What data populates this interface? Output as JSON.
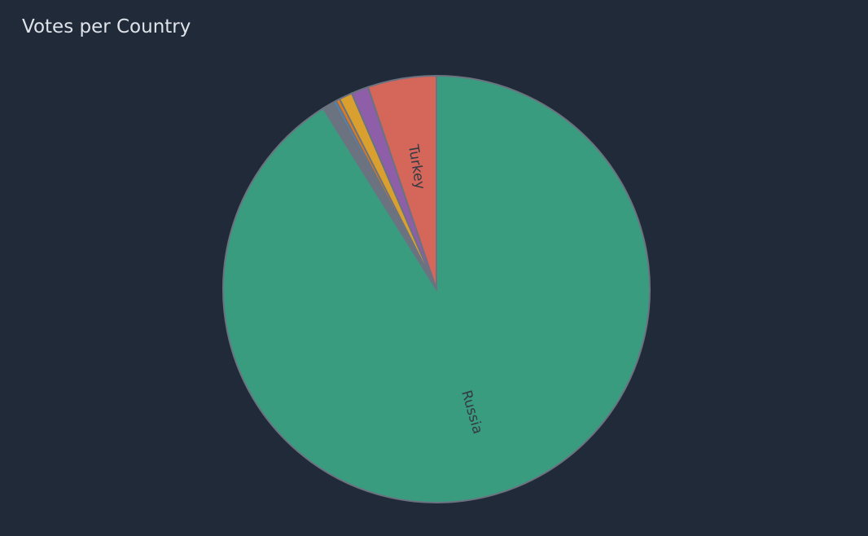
{
  "panel": {
    "title": "Votes per Country"
  },
  "chart_data": {
    "type": "pie",
    "title": "Votes per Country",
    "start": "top",
    "direction": "clockwise",
    "slices": [
      {
        "label": "Russia",
        "value": 91.1,
        "color": "#3a9c7f"
      },
      {
        "label": "",
        "value": 0.9,
        "color": "#6b7280"
      },
      {
        "label": "",
        "value": 0.2,
        "color": "#3d8fd0"
      },
      {
        "label": "",
        "value": 0.3,
        "color": "#e07b1a"
      },
      {
        "label": "",
        "value": 1.0,
        "color": "#d9a030"
      },
      {
        "label": "",
        "value": 1.3,
        "color": "#8e5ea8"
      },
      {
        "label": "Turkey",
        "value": 5.2,
        "color": "#d4665a"
      }
    ],
    "stroke_color": "#6b7280",
    "label_color": "#333a44",
    "background": "#212a39"
  }
}
